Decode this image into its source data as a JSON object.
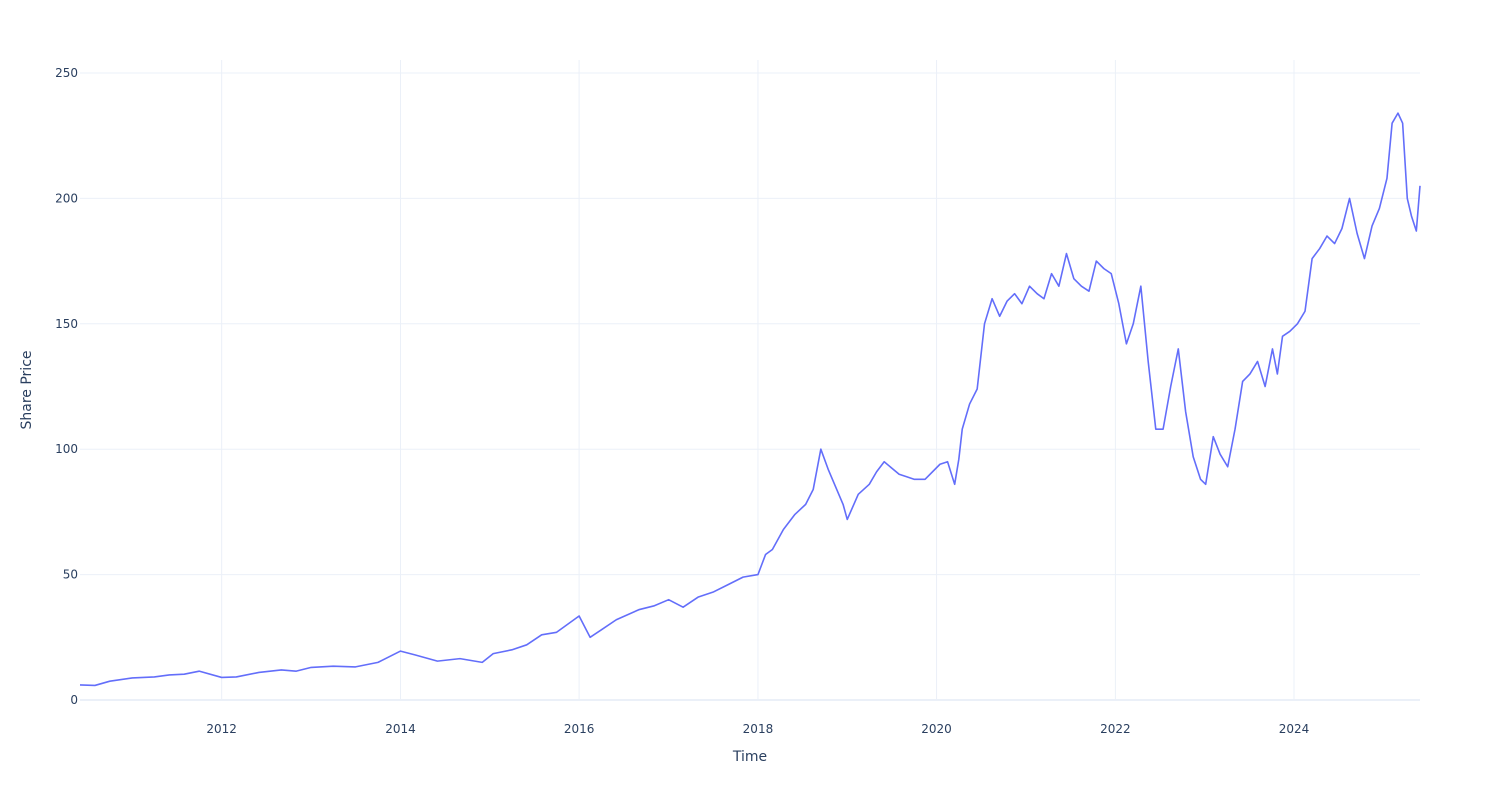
{
  "chart_data": {
    "type": "line",
    "title": "",
    "xlabel": "Time",
    "ylabel": "Share Price",
    "x_range": [
      "2010-06-01",
      "2025-05-30"
    ],
    "ylim": [
      0,
      255
    ],
    "x_ticks": [
      {
        "value": "2012-01-01",
        "label": "2012"
      },
      {
        "value": "2014-01-01",
        "label": "2014"
      },
      {
        "value": "2016-01-01",
        "label": "2016"
      },
      {
        "value": "2018-01-01",
        "label": "2018"
      },
      {
        "value": "2020-01-01",
        "label": "2020"
      },
      {
        "value": "2022-01-01",
        "label": "2022"
      },
      {
        "value": "2024-01-01",
        "label": "2024"
      }
    ],
    "y_ticks": [
      {
        "value": 0,
        "label": "0"
      },
      {
        "value": 50,
        "label": "50"
      },
      {
        "value": 100,
        "label": "100"
      },
      {
        "value": 150,
        "label": "150"
      },
      {
        "value": 200,
        "label": "200"
      },
      {
        "value": 250,
        "label": "250"
      }
    ],
    "grid": true,
    "legend": "none",
    "series": [
      {
        "color": "#636efa",
        "x": [
          "2010-06-01",
          "2010-08-01",
          "2010-10-01",
          "2011-01-01",
          "2011-04-01",
          "2011-06-01",
          "2011-08-01",
          "2011-10-01",
          "2012-01-01",
          "2012-03-01",
          "2012-06-01",
          "2012-09-01",
          "2012-11-01",
          "2013-01-01",
          "2013-04-01",
          "2013-07-01",
          "2013-10-01",
          "2014-01-01",
          "2014-03-01",
          "2014-06-01",
          "2014-09-01",
          "2014-12-01",
          "2015-01-15",
          "2015-04-01",
          "2015-06-01",
          "2015-08-01",
          "2015-10-01",
          "2016-01-01",
          "2016-02-15",
          "2016-04-01",
          "2016-06-01",
          "2016-09-01",
          "2016-11-01",
          "2017-01-01",
          "2017-03-01",
          "2017-05-01",
          "2017-07-01",
          "2017-09-01",
          "2017-11-01",
          "2018-01-01",
          "2018-02-01",
          "2018-03-01",
          "2018-04-15",
          "2018-06-01",
          "2018-07-15",
          "2018-08-15",
          "2018-09-15",
          "2018-10-15",
          "2018-12-15",
          "2019-01-01",
          "2019-02-15",
          "2019-04-01",
          "2019-05-01",
          "2019-06-01",
          "2019-08-01",
          "2019-09-01",
          "2019-10-01",
          "2019-11-15",
          "2020-01-15",
          "2020-02-15",
          "2020-03-15",
          "2020-04-01",
          "2020-04-15",
          "2020-05-15",
          "2020-06-15",
          "2020-07-15",
          "2020-08-15",
          "2020-09-15",
          "2020-10-15",
          "2020-11-15",
          "2020-12-15",
          "2021-01-15",
          "2021-02-15",
          "2021-03-15",
          "2021-04-15",
          "2021-05-15",
          "2021-06-15",
          "2021-07-15",
          "2021-08-15",
          "2021-09-15",
          "2021-10-15",
          "2021-11-15",
          "2021-12-15",
          "2022-01-15",
          "2022-02-15",
          "2022-03-15",
          "2022-04-15",
          "2022-05-15",
          "2022-06-15",
          "2022-07-15",
          "2022-08-15",
          "2022-09-15",
          "2022-10-15",
          "2022-11-15",
          "2022-12-15",
          "2023-01-05",
          "2023-02-05",
          "2023-03-05",
          "2023-04-05",
          "2023-05-05",
          "2023-06-05",
          "2023-07-05",
          "2023-08-05",
          "2023-09-05",
          "2023-10-05",
          "2023-10-25",
          "2023-11-15",
          "2023-12-15",
          "2024-01-15",
          "2024-02-15",
          "2024-03-15",
          "2024-04-15",
          "2024-05-15",
          "2024-06-15",
          "2024-07-15",
          "2024-08-15",
          "2024-09-15",
          "2024-10-15",
          "2024-11-15",
          "2024-12-15",
          "2025-01-15",
          "2025-02-05",
          "2025-03-01",
          "2025-03-20",
          "2025-04-08",
          "2025-04-25",
          "2025-05-15",
          "2025-05-30"
        ],
        "y": [
          6,
          5.8,
          7.5,
          8.8,
          9.2,
          10,
          10.3,
          11.5,
          9,
          9.2,
          11,
          12,
          11.5,
          13,
          13.5,
          13.2,
          15,
          19.5,
          18,
          15.5,
          16.5,
          15,
          18.5,
          20,
          22,
          26,
          27,
          33.5,
          25,
          28,
          32,
          36,
          37.5,
          40,
          37,
          41,
          43,
          46,
          49,
          50,
          58,
          60,
          68,
          74,
          78,
          84,
          100,
          92,
          78,
          72,
          82,
          86,
          91,
          95,
          90,
          89,
          88,
          88,
          94,
          95,
          86,
          96,
          108,
          118,
          124,
          150,
          160,
          153,
          159,
          162,
          158,
          165,
          162,
          160,
          170,
          165,
          178,
          168,
          165,
          163,
          175,
          172,
          170,
          158,
          142,
          150,
          165,
          135,
          108,
          108,
          125,
          140,
          115,
          97,
          88,
          86,
          105,
          98,
          93,
          108,
          127,
          130,
          135,
          125,
          140,
          130,
          145,
          147,
          150,
          155,
          176,
          180,
          185,
          182,
          188,
          200,
          186,
          176,
          189,
          196,
          208,
          230,
          234,
          230,
          200,
          193,
          187,
          205
        ]
      }
    ]
  }
}
